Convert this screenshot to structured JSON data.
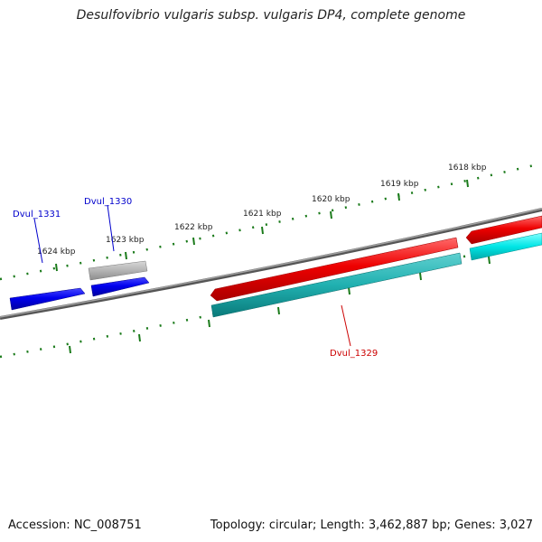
{
  "title": "Desulfovibrio vulgaris subsp. vulgaris DP4, complete genome",
  "footer": {
    "accession": "Accession: NC_008751",
    "summary": "Topology: circular; Length: 3,462,887 bp; Genes: 3,027"
  },
  "scale_labels": [
    "1618 kbp",
    "1619 kbp",
    "1620 kbp",
    "1621 kbp",
    "1622 kbp",
    "1623 kbp",
    "1624 kbp"
  ],
  "gene_labels": [
    {
      "text": "Dvul_1331",
      "color": "#0000cc"
    },
    {
      "text": "Dvul_1330",
      "color": "#0000cc"
    },
    {
      "text": "Dvul_1329",
      "color": "#cc0000"
    }
  ],
  "colors": {
    "forward_gene": "#ee0000",
    "reverse_gene": "#0000ee",
    "pseudo_gene": "#b0b0b0",
    "cds_forward": "#00e5e5",
    "cds_reverse": "#20b0b0",
    "backbone": "#808080",
    "ticks": "#1a7a1a"
  }
}
